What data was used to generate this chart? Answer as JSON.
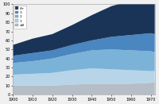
{
  "years": [
    1900,
    1910,
    1920,
    1930,
    1940,
    1950,
    1960,
    1970,
    1972
  ],
  "series": {
    "0": [
      10,
      10,
      10,
      11,
      12,
      12,
      12,
      13,
      14
    ],
    "1": [
      12,
      13,
      14,
      16,
      17,
      16,
      15,
      13,
      12
    ],
    "2": [
      13,
      14,
      16,
      18,
      20,
      22,
      22,
      22,
      21
    ],
    "3": [
      8,
      9,
      9,
      10,
      11,
      14,
      17,
      20,
      20
    ],
    "4+": [
      12,
      16,
      18,
      22,
      28,
      34,
      38,
      42,
      43
    ]
  },
  "colors": {
    "0": "#b5bec6",
    "1": "#b8d4e8",
    "2": "#7bb3d8",
    "3": "#4a86c0",
    "4+": "#1a3458"
  },
  "legend_order": [
    "4+",
    "3",
    "2",
    "1",
    "0"
  ],
  "legend_display": [
    "4+",
    "3",
    "2",
    "1",
    "≤0"
  ],
  "ylim": [
    0,
    100
  ],
  "yticks": [
    0,
    10,
    20,
    30,
    40,
    50,
    60,
    70,
    80,
    90,
    100
  ],
  "xticks": [
    1900,
    1910,
    1920,
    1930,
    1940,
    1950,
    1960,
    1970
  ],
  "xlim": [
    1900,
    1972
  ],
  "background_color": "#f0f0f0"
}
